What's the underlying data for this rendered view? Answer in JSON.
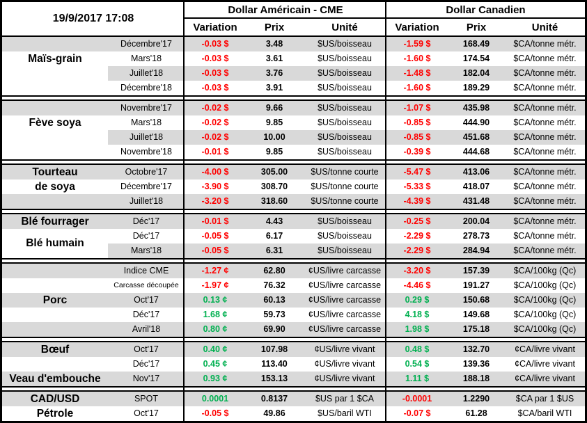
{
  "meta": {
    "timestamp": "19/9/2017 17:08"
  },
  "header": {
    "us_title": "Dollar Américain - CME",
    "ca_title": "Dollar Canadien",
    "col_variation": "Variation",
    "col_prix": "Prix",
    "col_unite": "Unité"
  },
  "colors": {
    "negative": "#FF0000",
    "positive": "#00B050",
    "stripe": "#D9D9D9",
    "border": "#000000"
  },
  "sections": [
    {
      "id": "mais-grain",
      "labels": [
        {
          "text": "Maïs-grain",
          "row": 1,
          "span": 1
        }
      ],
      "clear_label_rows": [
        1,
        2,
        3
      ],
      "rows": [
        {
          "month": "Décembre'17",
          "us_var": "-0.03 $",
          "us_dir": "neg",
          "us_prix": "3.48",
          "us_unit": "$US/boisseau",
          "ca_var": "-1.59 $",
          "ca_dir": "neg",
          "ca_prix": "168.49",
          "ca_unit": "$CA/tonne métr."
        },
        {
          "month": "Mars'18",
          "us_var": "-0.03 $",
          "us_dir": "neg",
          "us_prix": "3.61",
          "us_unit": "$US/boisseau",
          "ca_var": "-1.60 $",
          "ca_dir": "neg",
          "ca_prix": "174.54",
          "ca_unit": "$CA/tonne métr."
        },
        {
          "month": "Juillet'18",
          "us_var": "-0.03 $",
          "us_dir": "neg",
          "us_prix": "3.76",
          "us_unit": "$US/boisseau",
          "ca_var": "-1.48 $",
          "ca_dir": "neg",
          "ca_prix": "182.04",
          "ca_unit": "$CA/tonne métr."
        },
        {
          "month": "Décembre'18",
          "us_var": "-0.03 $",
          "us_dir": "neg",
          "us_prix": "3.91",
          "us_unit": "$US/boisseau",
          "ca_var": "-1.60 $",
          "ca_dir": "neg",
          "ca_prix": "189.29",
          "ca_unit": "$CA/tonne métr."
        }
      ]
    },
    {
      "id": "feve-soya",
      "labels": [
        {
          "text": "Fève soya",
          "row": 1,
          "span": 1
        }
      ],
      "clear_label_rows": [
        1,
        2,
        3
      ],
      "rows": [
        {
          "month": "Novembre'17",
          "us_var": "-0.02 $",
          "us_dir": "neg",
          "us_prix": "9.66",
          "us_unit": "$US/boisseau",
          "ca_var": "-1.07 $",
          "ca_dir": "neg",
          "ca_prix": "435.98",
          "ca_unit": "$CA/tonne métr."
        },
        {
          "month": "Mars'18",
          "us_var": "-0.02 $",
          "us_dir": "neg",
          "us_prix": "9.85",
          "us_unit": "$US/boisseau",
          "ca_var": "-0.85 $",
          "ca_dir": "neg",
          "ca_prix": "444.90",
          "ca_unit": "$CA/tonne métr."
        },
        {
          "month": "Juillet'18",
          "us_var": "-0.02 $",
          "us_dir": "neg",
          "us_prix": "10.00",
          "us_unit": "$US/boisseau",
          "ca_var": "-0.85 $",
          "ca_dir": "neg",
          "ca_prix": "451.68",
          "ca_unit": "$CA/tonne métr."
        },
        {
          "month": "Novembre'18",
          "us_var": "-0.01 $",
          "us_dir": "neg",
          "us_prix": "9.85",
          "us_unit": "$US/boisseau",
          "ca_var": "-0.39 $",
          "ca_dir": "neg",
          "ca_prix": "444.68",
          "ca_unit": "$CA/tonne métr."
        }
      ]
    },
    {
      "id": "tourteau-de-soya",
      "labels": [
        {
          "text": "Tourteau",
          "row": 0,
          "span": 1
        },
        {
          "text": "de soya",
          "row": 1,
          "span": 1
        }
      ],
      "clear_label_rows": [],
      "rows": [
        {
          "month": "Octobre'17",
          "us_var": "-4.00 $",
          "us_dir": "neg",
          "us_prix": "305.00",
          "us_unit": "$US/tonne courte",
          "ca_var": "-5.47 $",
          "ca_dir": "neg",
          "ca_prix": "413.06",
          "ca_unit": "$CA/tonne métr."
        },
        {
          "month": "Décembre'17",
          "us_var": "-3.90 $",
          "us_dir": "neg",
          "us_prix": "308.70",
          "us_unit": "$US/tonne courte",
          "ca_var": "-5.33 $",
          "ca_dir": "neg",
          "ca_prix": "418.07",
          "ca_unit": "$CA/tonne métr."
        },
        {
          "month": "Juillet'18",
          "us_var": "-3.20 $",
          "us_dir": "neg",
          "us_prix": "318.60",
          "us_unit": "$US/tonne courte",
          "ca_var": "-4.39 $",
          "ca_dir": "neg",
          "ca_prix": "431.48",
          "ca_unit": "$CA/tonne métr."
        }
      ]
    },
    {
      "id": "ble",
      "labels": [
        {
          "text": "Blé fourrager",
          "row": 0,
          "span": 1
        },
        {
          "text": "Blé humain",
          "row": 1,
          "span": 2
        }
      ],
      "clear_label_rows": [
        1,
        2
      ],
      "rows": [
        {
          "month": "Déc'17",
          "us_var": "-0.01 $",
          "us_dir": "neg",
          "us_prix": "4.43",
          "us_unit": "$US/boisseau",
          "ca_var": "-0.25 $",
          "ca_dir": "neg",
          "ca_prix": "200.04",
          "ca_unit": "$CA/tonne métr."
        },
        {
          "month": "Déc'17",
          "us_var": "-0.05 $",
          "us_dir": "neg",
          "us_prix": "6.17",
          "us_unit": "$US/boisseau",
          "ca_var": "-2.29 $",
          "ca_dir": "neg",
          "ca_prix": "278.73",
          "ca_unit": "$CA/tonne métr."
        },
        {
          "month": "Mars'18",
          "us_var": "-0.05 $",
          "us_dir": "neg",
          "us_prix": "6.31",
          "us_unit": "$US/boisseau",
          "ca_var": "-2.29 $",
          "ca_dir": "neg",
          "ca_prix": "284.94",
          "ca_unit": "$CA/tonne métr."
        }
      ]
    },
    {
      "id": "porc",
      "labels": [
        {
          "text": "Porc",
          "row": 2,
          "span": 1
        }
      ],
      "clear_label_rows": [],
      "rows": [
        {
          "month": "Indice CME",
          "us_var": "-1.27 ¢",
          "us_dir": "neg",
          "us_prix": "62.80",
          "us_unit": "¢US/livre carcasse",
          "ca_var": "-3.20 $",
          "ca_dir": "neg",
          "ca_prix": "157.39",
          "ca_unit": "$CA/100kg (Qc)"
        },
        {
          "month": "Carcasse découpée",
          "small": true,
          "us_var": "-1.97 ¢",
          "us_dir": "neg",
          "us_prix": "76.32",
          "us_unit": "¢US/livre carcasse",
          "ca_var": "-4.46 $",
          "ca_dir": "neg",
          "ca_prix": "191.27",
          "ca_unit": "$CA/100kg (Qc)"
        },
        {
          "month": "Oct'17",
          "us_var": "0.13 ¢",
          "us_dir": "pos",
          "us_prix": "60.13",
          "us_unit": "¢US/livre carcasse",
          "ca_var": "0.29 $",
          "ca_dir": "pos",
          "ca_prix": "150.68",
          "ca_unit": "$CA/100kg (Qc)"
        },
        {
          "month": "Déc'17",
          "us_var": "1.68 ¢",
          "us_dir": "pos",
          "us_prix": "59.73",
          "us_unit": "¢US/livre carcasse",
          "ca_var": "4.18 $",
          "ca_dir": "pos",
          "ca_prix": "149.68",
          "ca_unit": "$CA/100kg (Qc)"
        },
        {
          "month": "Avril'18",
          "us_var": "0.80 ¢",
          "us_dir": "pos",
          "us_prix": "69.90",
          "us_unit": "¢US/livre carcasse",
          "ca_var": "1.98 $",
          "ca_dir": "pos",
          "ca_prix": "175.18",
          "ca_unit": "$CA/100kg (Qc)"
        }
      ]
    },
    {
      "id": "boeuf-veau",
      "labels": [
        {
          "text": "Bœuf",
          "row": 0,
          "span": 1
        },
        {
          "text": "Veau d'embouche",
          "row": 2,
          "span": 1
        }
      ],
      "clear_label_rows": [],
      "rows": [
        {
          "month": "Oct'17",
          "us_var": "0.40 ¢",
          "us_dir": "pos",
          "us_prix": "107.98",
          "us_unit": "¢US/livre vivant",
          "ca_var": "0.48 $",
          "ca_dir": "pos",
          "ca_prix": "132.70",
          "ca_unit": "¢CA/livre vivant"
        },
        {
          "month": "Déc'17",
          "us_var": "0.45 ¢",
          "us_dir": "pos",
          "us_prix": "113.40",
          "us_unit": "¢US/livre vivant",
          "ca_var": "0.54 $",
          "ca_dir": "pos",
          "ca_prix": "139.36",
          "ca_unit": "¢CA/livre vivant"
        },
        {
          "month": "Nov'17",
          "us_var": "0.93 ¢",
          "us_dir": "pos",
          "us_prix": "153.13",
          "us_unit": "¢US/livre vivant",
          "ca_var": "1.11 $",
          "ca_dir": "pos",
          "ca_prix": "188.18",
          "ca_unit": "¢CA/livre vivant"
        }
      ]
    },
    {
      "id": "cadusd-petrole",
      "labels": [
        {
          "text": "CAD/USD",
          "row": 0,
          "span": 1
        },
        {
          "text": "Pétrole",
          "row": 1,
          "span": 1
        }
      ],
      "clear_label_rows": [],
      "rows": [
        {
          "month": "SPOT",
          "us_var": "0.0001",
          "us_dir": "pos",
          "us_prix": "0.8137",
          "us_unit": "$US par 1 $CA",
          "ca_var": "-0.0001",
          "ca_dir": "neg",
          "ca_prix": "1.2290",
          "ca_unit": "$CA par 1 $US"
        },
        {
          "month": "Oct'17",
          "us_var": "-0.05 $",
          "us_dir": "neg",
          "us_prix": "49.86",
          "us_unit": "$US/baril WTI",
          "ca_var": "-0.07 $",
          "ca_dir": "neg",
          "ca_prix": "61.28",
          "ca_unit": "$CA/baril WTI"
        }
      ]
    }
  ]
}
